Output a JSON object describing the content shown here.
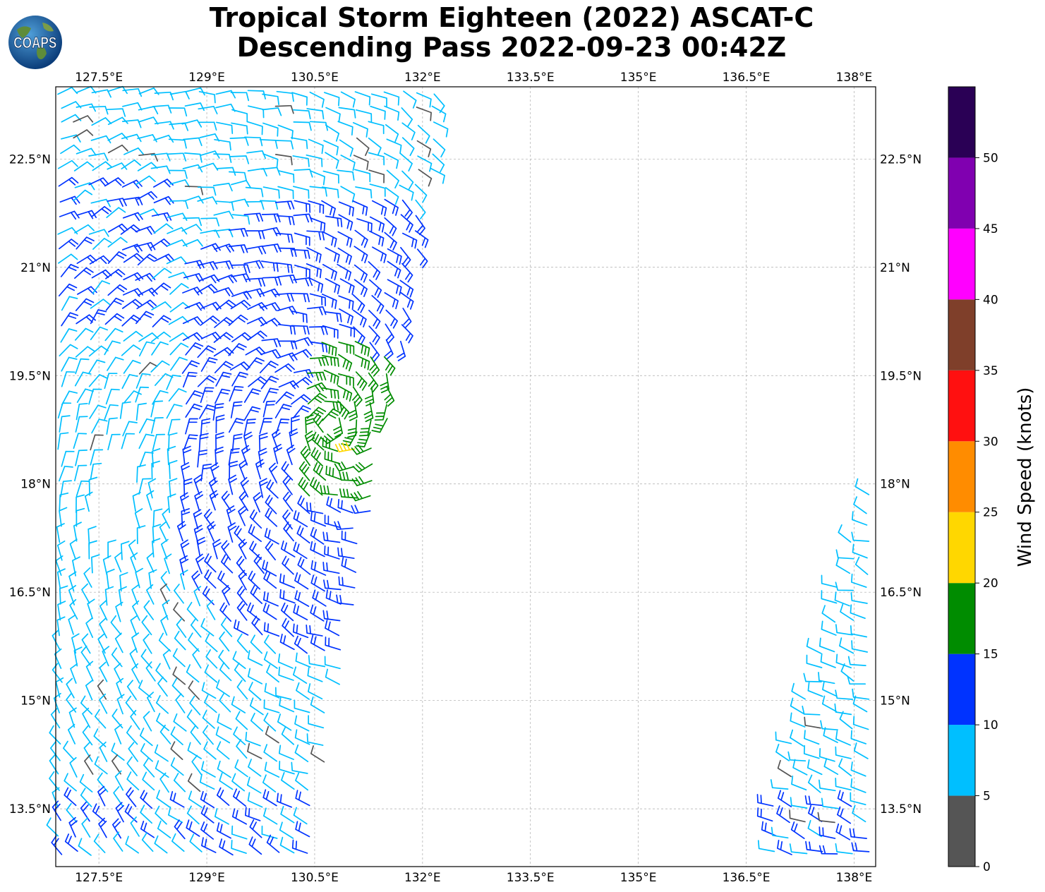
{
  "title": {
    "line1": "Tropical Storm Eighteen (2022) ASCAT-C",
    "line2": "Descending Pass 2022-09-23 00:42Z"
  },
  "logo": {
    "icon": "coaps-globe-logo",
    "text": "COAPS"
  },
  "map": {
    "lon_range": [
      126.9,
      138.3
    ],
    "lat_range": [
      12.7,
      23.5
    ],
    "lon_ticks": [
      "127.5°E",
      "129°E",
      "130.5°E",
      "132°E",
      "133.5°E",
      "135°E",
      "136.5°E",
      "138°E"
    ],
    "lat_ticks": [
      "22.5°N",
      "21°N",
      "19.5°N",
      "18°N",
      "16.5°N",
      "15°N",
      "13.5°N"
    ],
    "gridlines": true
  },
  "colorbar": {
    "label": "Wind Speed (knots)",
    "ticks": [
      "0",
      "5",
      "10",
      "15",
      "20",
      "25",
      "30",
      "35",
      "40",
      "45",
      "50"
    ],
    "colors": [
      "#555555",
      "#00bfff",
      "#0033ff",
      "#008c00",
      "#ffd700",
      "#ff8c00",
      "#ff1010",
      "#7f3f2a",
      "#ff00ff",
      "#8000b0",
      "#2a0055"
    ]
  }
}
